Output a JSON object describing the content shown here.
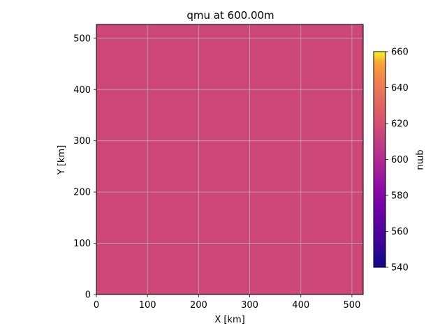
{
  "chart_data": {
    "type": "heatmap",
    "title": "qmu at 600.00m",
    "xlabel": "X [km]",
    "ylabel": "Y [km]",
    "xlim": [
      0,
      522
    ],
    "ylim": [
      0,
      527
    ],
    "x_ticks": [
      0,
      100,
      200,
      300,
      400,
      500
    ],
    "y_ticks": [
      0,
      100,
      200,
      300,
      400,
      500
    ],
    "grid": true,
    "field_value": 600,
    "field_color": "#cc4778",
    "colorbar": {
      "label": "qmu",
      "colormap": "plasma",
      "range": [
        540,
        660
      ],
      "ticks": [
        540,
        560,
        580,
        600,
        620,
        640,
        660
      ]
    }
  }
}
